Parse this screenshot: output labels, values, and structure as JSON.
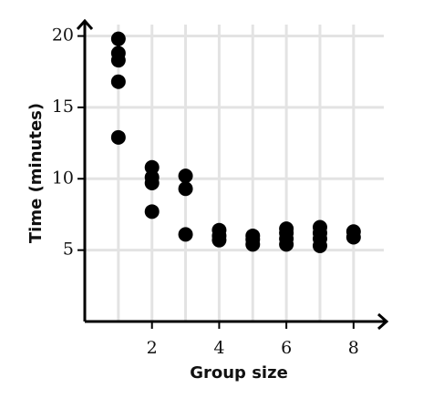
{
  "chart_data": {
    "type": "scatter",
    "x_label": "Group size",
    "y_label": "Time (minutes)",
    "x": [
      1,
      1,
      1,
      1,
      1,
      2,
      2,
      2,
      2,
      3,
      3,
      3,
      4,
      4,
      4,
      5,
      5,
      5,
      6,
      6,
      6,
      6,
      7,
      7,
      7,
      7,
      8,
      8
    ],
    "values": [
      19.8,
      18.8,
      18.3,
      16.8,
      12.9,
      10.8,
      10.1,
      9.7,
      7.7,
      10.2,
      9.3,
      6.1,
      6.4,
      6.0,
      5.7,
      6.0,
      5.75,
      5.4,
      6.5,
      6.2,
      5.8,
      5.4,
      6.6,
      6.2,
      5.8,
      5.3,
      6.3,
      5.9
    ],
    "color": "#000000",
    "xlim": [
      0,
      8.9
    ],
    "ylim": [
      0,
      20.8
    ],
    "xticks": [
      2,
      4,
      6,
      8
    ],
    "yticks": [
      5,
      10,
      15,
      20
    ],
    "x_grid_lines": [
      1,
      2,
      3,
      4,
      5,
      6,
      7,
      8
    ],
    "grid": true
  }
}
